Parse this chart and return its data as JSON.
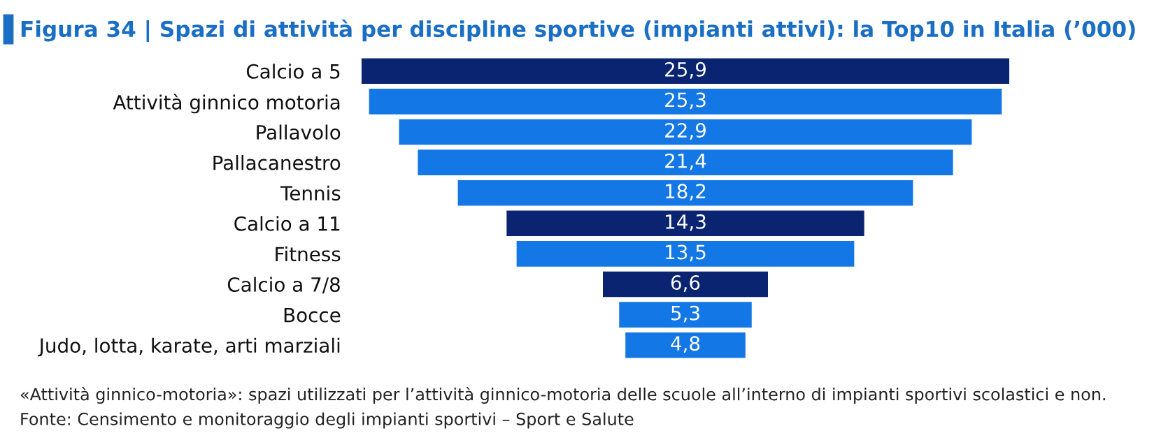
{
  "chart_data": {
    "type": "other",
    "title": "Figura 34 | Spazi di attività per discipline sportive (impianti attivi): la Top10 in Italia (’000)",
    "categories": [
      "Calcio a 5",
      "Attività ginnico motoria",
      "Pallavolo",
      "Pallacanestro",
      "Tennis",
      "Calcio a 11",
      "Fitness",
      "Calcio a 7/8",
      "Bocce",
      "Judo, lotta, karate, arti marziali"
    ],
    "values": [
      25.9,
      25.3,
      22.9,
      21.4,
      18.2,
      14.3,
      13.5,
      6.6,
      5.3,
      4.8
    ],
    "value_labels": [
      "25,9",
      "25,3",
      "22,9",
      "21,4",
      "18,2",
      "14,3",
      "13,5",
      "6,6",
      "5,3",
      "4,8"
    ],
    "colors": [
      "#0a2472",
      "#1477e6",
      "#1477e6",
      "#1477e6",
      "#1477e6",
      "#0a2472",
      "#1477e6",
      "#0a2472",
      "#1477e6",
      "#1477e6"
    ],
    "annotations": [
      "«Attività ginnico-motoria»: spazi utilizzati per l’attività ginnico-motoria delle scuole all’interno di impianti sportivi scolastici e non.",
      "Fonte: Censimento e monitoraggio degli impianti sportivi – Sport e Salute"
    ]
  }
}
